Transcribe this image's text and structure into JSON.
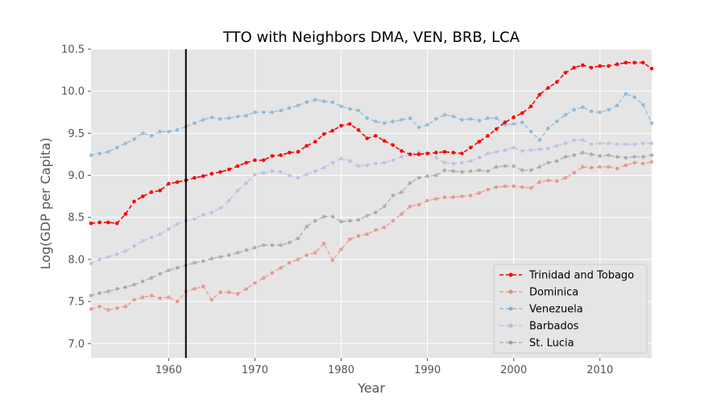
{
  "chart_data": {
    "type": "line",
    "title": "TTO with Neighbors DMA, VEN, BRB, LCA",
    "xlabel": "Year",
    "ylabel": "Log(GDP per Capita)",
    "xlim": [
      1951,
      2016
    ],
    "ylim": [
      6.83,
      10.5
    ],
    "xticks": [
      1960,
      1970,
      1980,
      1990,
      2000,
      2010
    ],
    "yticks": [
      7.0,
      7.5,
      8.0,
      8.5,
      9.0,
      9.5,
      10.0,
      10.5
    ],
    "ytick_labels": [
      "7.0",
      "7.5",
      "8.0",
      "8.5",
      "9.0",
      "9.5",
      "10.0",
      "10.5"
    ],
    "vline_x": 1962,
    "grid": true,
    "legend_position": "lower-right",
    "x": [
      1951,
      1952,
      1953,
      1954,
      1955,
      1956,
      1957,
      1958,
      1959,
      1960,
      1961,
      1962,
      1963,
      1964,
      1965,
      1966,
      1967,
      1968,
      1969,
      1970,
      1971,
      1972,
      1973,
      1974,
      1975,
      1976,
      1977,
      1978,
      1979,
      1980,
      1981,
      1982,
      1983,
      1984,
      1985,
      1986,
      1987,
      1988,
      1989,
      1990,
      1991,
      1992,
      1993,
      1994,
      1995,
      1996,
      1997,
      1998,
      1999,
      2000,
      2001,
      2002,
      2003,
      2004,
      2005,
      2006,
      2007,
      2008,
      2009,
      2010,
      2011,
      2012,
      2013,
      2014,
      2015,
      2016
    ],
    "series": [
      {
        "name": "Trinidad and Tobago",
        "color": "#ff0000",
        "style": "dashed",
        "values": [
          8.43,
          8.44,
          8.44,
          8.43,
          8.54,
          8.69,
          8.75,
          8.8,
          8.82,
          8.9,
          8.92,
          8.94,
          8.97,
          8.99,
          9.02,
          9.04,
          9.07,
          9.11,
          9.15,
          9.18,
          9.18,
          9.23,
          9.24,
          9.27,
          9.28,
          9.35,
          9.4,
          9.49,
          9.53,
          9.59,
          9.61,
          9.54,
          9.44,
          9.47,
          9.41,
          9.36,
          9.29,
          9.25,
          9.25,
          9.26,
          9.27,
          9.28,
          9.27,
          9.26,
          9.33,
          9.4,
          9.47,
          9.55,
          9.63,
          9.69,
          9.74,
          9.82,
          9.96,
          10.04,
          10.11,
          10.22,
          10.28,
          10.31,
          10.28,
          10.3,
          10.3,
          10.32,
          10.34,
          10.34,
          10.34,
          10.27
        ]
      },
      {
        "name": "Dominica",
        "color": "#e8897a",
        "style": "dashed",
        "values": [
          7.41,
          7.44,
          7.4,
          7.42,
          7.44,
          7.52,
          7.55,
          7.57,
          7.54,
          7.55,
          7.5,
          7.62,
          7.65,
          7.68,
          7.52,
          7.61,
          7.61,
          7.59,
          7.65,
          7.72,
          7.78,
          7.84,
          7.9,
          7.96,
          8.0,
          8.05,
          8.08,
          8.19,
          7.99,
          8.12,
          8.24,
          8.28,
          8.3,
          8.35,
          8.38,
          8.46,
          8.54,
          8.63,
          8.65,
          8.7,
          8.72,
          8.74,
          8.74,
          8.75,
          8.76,
          8.79,
          8.83,
          8.86,
          8.87,
          8.87,
          8.86,
          8.85,
          8.92,
          8.94,
          8.93,
          8.97,
          9.03,
          9.1,
          9.09,
          9.1,
          9.1,
          9.08,
          9.12,
          9.15,
          9.14,
          9.16
        ]
      },
      {
        "name": "Venezuela",
        "color": "#82b1d3",
        "style": "dashed",
        "values": [
          9.24,
          9.26,
          9.28,
          9.33,
          9.38,
          9.43,
          9.5,
          9.47,
          9.52,
          9.52,
          9.54,
          9.58,
          9.62,
          9.66,
          9.69,
          9.67,
          9.68,
          9.7,
          9.71,
          9.75,
          9.75,
          9.75,
          9.77,
          9.8,
          9.83,
          9.87,
          9.9,
          9.88,
          9.87,
          9.82,
          9.79,
          9.77,
          9.68,
          9.64,
          9.62,
          9.64,
          9.66,
          9.68,
          9.57,
          9.6,
          9.67,
          9.72,
          9.7,
          9.66,
          9.67,
          9.65,
          9.68,
          9.68,
          9.6,
          9.61,
          9.63,
          9.52,
          9.42,
          9.56,
          9.64,
          9.72,
          9.78,
          9.81,
          9.76,
          9.75,
          9.78,
          9.83,
          9.97,
          9.93,
          9.84,
          9.62
        ]
      },
      {
        "name": "Barbados",
        "color": "#bcb6e4",
        "style": "dashed",
        "values": [
          7.95,
          8.0,
          8.03,
          8.06,
          8.1,
          8.16,
          8.22,
          8.26,
          8.3,
          8.36,
          8.42,
          8.46,
          8.48,
          8.53,
          8.56,
          8.61,
          8.7,
          8.82,
          8.91,
          9.01,
          9.03,
          9.05,
          9.04,
          9.0,
          8.97,
          9.01,
          9.05,
          9.09,
          9.15,
          9.2,
          9.17,
          9.11,
          9.12,
          9.14,
          9.15,
          9.18,
          9.22,
          9.25,
          9.28,
          9.26,
          9.21,
          9.15,
          9.14,
          9.15,
          9.17,
          9.21,
          9.26,
          9.28,
          9.3,
          9.33,
          9.29,
          9.3,
          9.31,
          9.32,
          9.35,
          9.38,
          9.42,
          9.42,
          9.37,
          9.38,
          9.38,
          9.37,
          9.37,
          9.37,
          9.38,
          9.38
        ]
      },
      {
        "name": "St. Lucia",
        "color": "#a0a0a0",
        "style": "dashed",
        "values": [
          7.57,
          7.6,
          7.62,
          7.65,
          7.67,
          7.7,
          7.74,
          7.78,
          7.83,
          7.87,
          7.9,
          7.93,
          7.96,
          7.98,
          8.01,
          8.03,
          8.05,
          8.08,
          8.11,
          8.14,
          8.17,
          8.17,
          8.17,
          8.2,
          8.25,
          8.39,
          8.46,
          8.51,
          8.51,
          8.45,
          8.46,
          8.47,
          8.52,
          8.56,
          8.63,
          8.76,
          8.8,
          8.91,
          8.97,
          8.99,
          9.0,
          9.06,
          9.05,
          9.04,
          9.05,
          9.06,
          9.05,
          9.1,
          9.11,
          9.11,
          9.06,
          9.06,
          9.1,
          9.15,
          9.17,
          9.22,
          9.24,
          9.27,
          9.25,
          9.23,
          9.24,
          9.22,
          9.21,
          9.22,
          9.22,
          9.24
        ]
      }
    ]
  }
}
